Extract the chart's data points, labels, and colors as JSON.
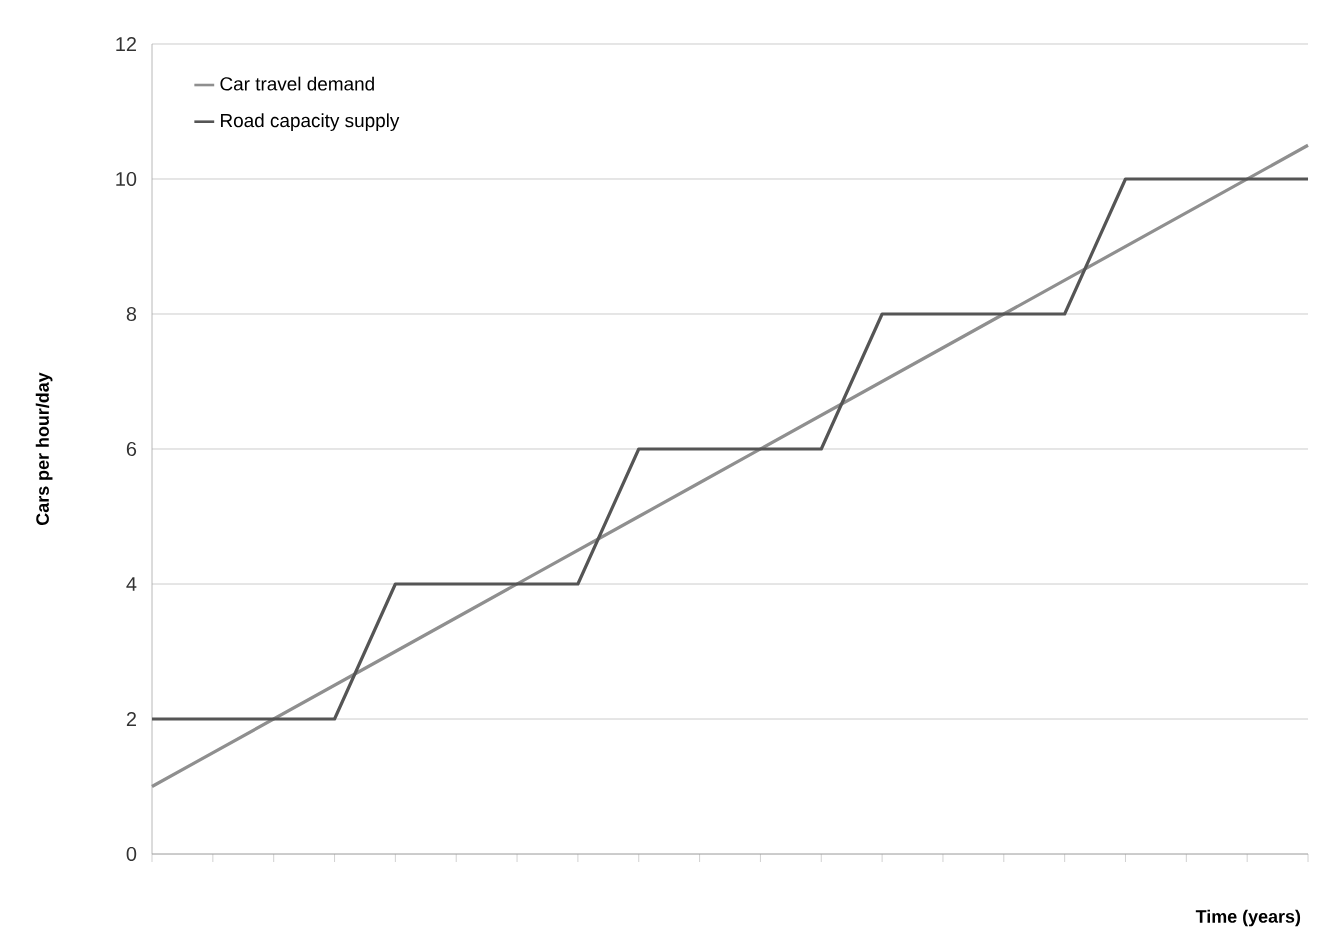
{
  "chart_data": {
    "type": "line",
    "xlabel": "Time (years)",
    "ylabel": "Cars per hour/day",
    "categories": [
      null,
      null,
      null,
      null,
      null,
      null,
      null,
      null,
      null,
      null,
      null,
      null,
      null,
      null,
      null,
      null,
      null,
      null,
      null,
      null
    ],
    "series": [
      {
        "name": "Car travel demand",
        "color": "#8f8f8f",
        "values": [
          1,
          1.5,
          2,
          2.5,
          3,
          3.5,
          4,
          4.5,
          5,
          5.5,
          6,
          6.5,
          7,
          7.5,
          8,
          8.5,
          9,
          9.5,
          10,
          10.5
        ]
      },
      {
        "name": "Road capacity supply",
        "color": "#555555",
        "values": [
          2,
          2,
          2,
          2,
          4,
          4,
          4,
          4,
          6,
          6,
          6,
          6,
          8,
          8,
          8,
          8,
          10,
          10,
          10,
          10
        ]
      }
    ],
    "ylim": [
      0,
      12
    ],
    "yticks": [
      0,
      2,
      4,
      6,
      8,
      10,
      12
    ],
    "grid": "y",
    "legend": "top left"
  }
}
